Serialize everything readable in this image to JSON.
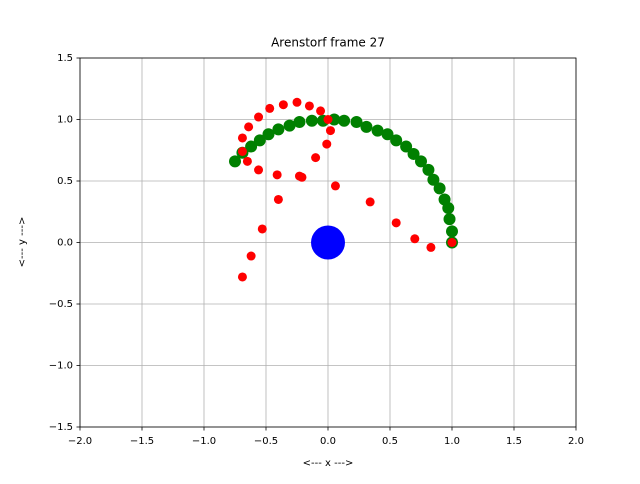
{
  "chart_data": {
    "type": "scatter",
    "title": "Arenstorf frame 27",
    "x_label": "<---  x  --->",
    "y_label": "<---  y  --->",
    "xlim": [
      -2,
      2
    ],
    "ylim": [
      -1.5,
      1.5
    ],
    "xticks": [
      {
        "value": -2,
        "label": "−2.0"
      },
      {
        "value": -1.5,
        "label": "−1.5"
      },
      {
        "value": -1,
        "label": "−1.0"
      },
      {
        "value": -0.5,
        "label": "−0.5"
      },
      {
        "value": 0,
        "label": "0.0"
      },
      {
        "value": 0.5,
        "label": "0.5"
      },
      {
        "value": 1,
        "label": "1.0"
      },
      {
        "value": 1.5,
        "label": "1.5"
      },
      {
        "value": 2,
        "label": "2.0"
      }
    ],
    "yticks": [
      {
        "value": -1.5,
        "label": "−1.5"
      },
      {
        "value": -1,
        "label": "−1.0"
      },
      {
        "value": -0.5,
        "label": "−0.5"
      },
      {
        "value": 0,
        "label": "0.0"
      },
      {
        "value": 0.5,
        "label": "0.5"
      },
      {
        "value": 1,
        "label": "1.0"
      },
      {
        "value": 1.5,
        "label": "1.5"
      }
    ],
    "grid": true,
    "series": [
      {
        "color": "#008000",
        "marker_size": 6,
        "x": [
          1.0,
          1.0,
          0.98,
          0.97,
          0.94,
          0.9,
          0.85,
          0.81,
          0.75,
          0.69,
          0.63,
          0.55,
          0.48,
          0.4,
          0.31,
          0.23,
          0.13,
          0.05,
          -0.04,
          -0.13,
          -0.23,
          -0.31,
          -0.4,
          -0.48,
          -0.55,
          -0.62,
          -0.69,
          -0.75
        ],
        "y": [
          0.0,
          0.09,
          0.19,
          0.28,
          0.35,
          0.44,
          0.51,
          0.59,
          0.66,
          0.72,
          0.78,
          0.83,
          0.88,
          0.91,
          0.94,
          0.98,
          0.99,
          1.0,
          0.99,
          0.99,
          0.98,
          0.95,
          0.92,
          0.88,
          0.83,
          0.78,
          0.73,
          0.66
        ]
      },
      {
        "color": "#ff0000",
        "marker_size": 4.5,
        "x": [
          1.0,
          0.83,
          0.7,
          0.55,
          0.34,
          0.06,
          -0.21,
          -0.23,
          -0.4,
          -0.53,
          -0.62,
          -0.69,
          0.0,
          0.02,
          -0.01,
          -0.1,
          -0.41,
          -0.56,
          -0.65,
          -0.69,
          -0.69,
          -0.64,
          -0.56,
          -0.47,
          -0.36,
          -0.25,
          -0.15,
          -0.06
        ],
        "y": [
          0.0,
          -0.04,
          0.03,
          0.16,
          0.33,
          0.46,
          0.53,
          0.54,
          0.35,
          0.11,
          -0.11,
          -0.28,
          1.0,
          0.91,
          0.8,
          0.69,
          0.55,
          0.59,
          0.66,
          0.74,
          0.85,
          0.94,
          1.02,
          1.09,
          1.12,
          1.14,
          1.11,
          1.07
        ]
      },
      {
        "color": "#0000ff",
        "marker_size": 17,
        "x": [
          0
        ],
        "y": [
          0
        ]
      }
    ]
  }
}
